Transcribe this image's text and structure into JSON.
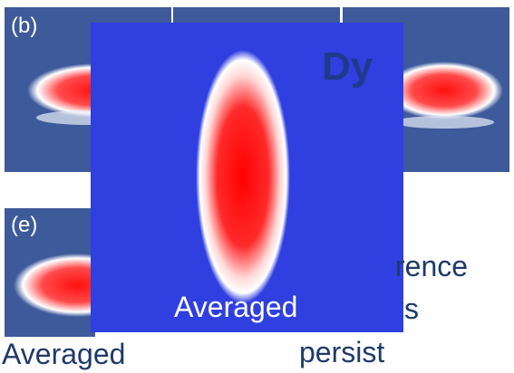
{
  "panels": {
    "top_left_label": "(b)",
    "bottom_left_label": "(e)"
  },
  "main_image": {
    "label": "Dy",
    "caption": "Averaged"
  },
  "bottom_caption": "Averaged",
  "text_fragments": [
    "rence",
    "s",
    "persist"
  ]
}
